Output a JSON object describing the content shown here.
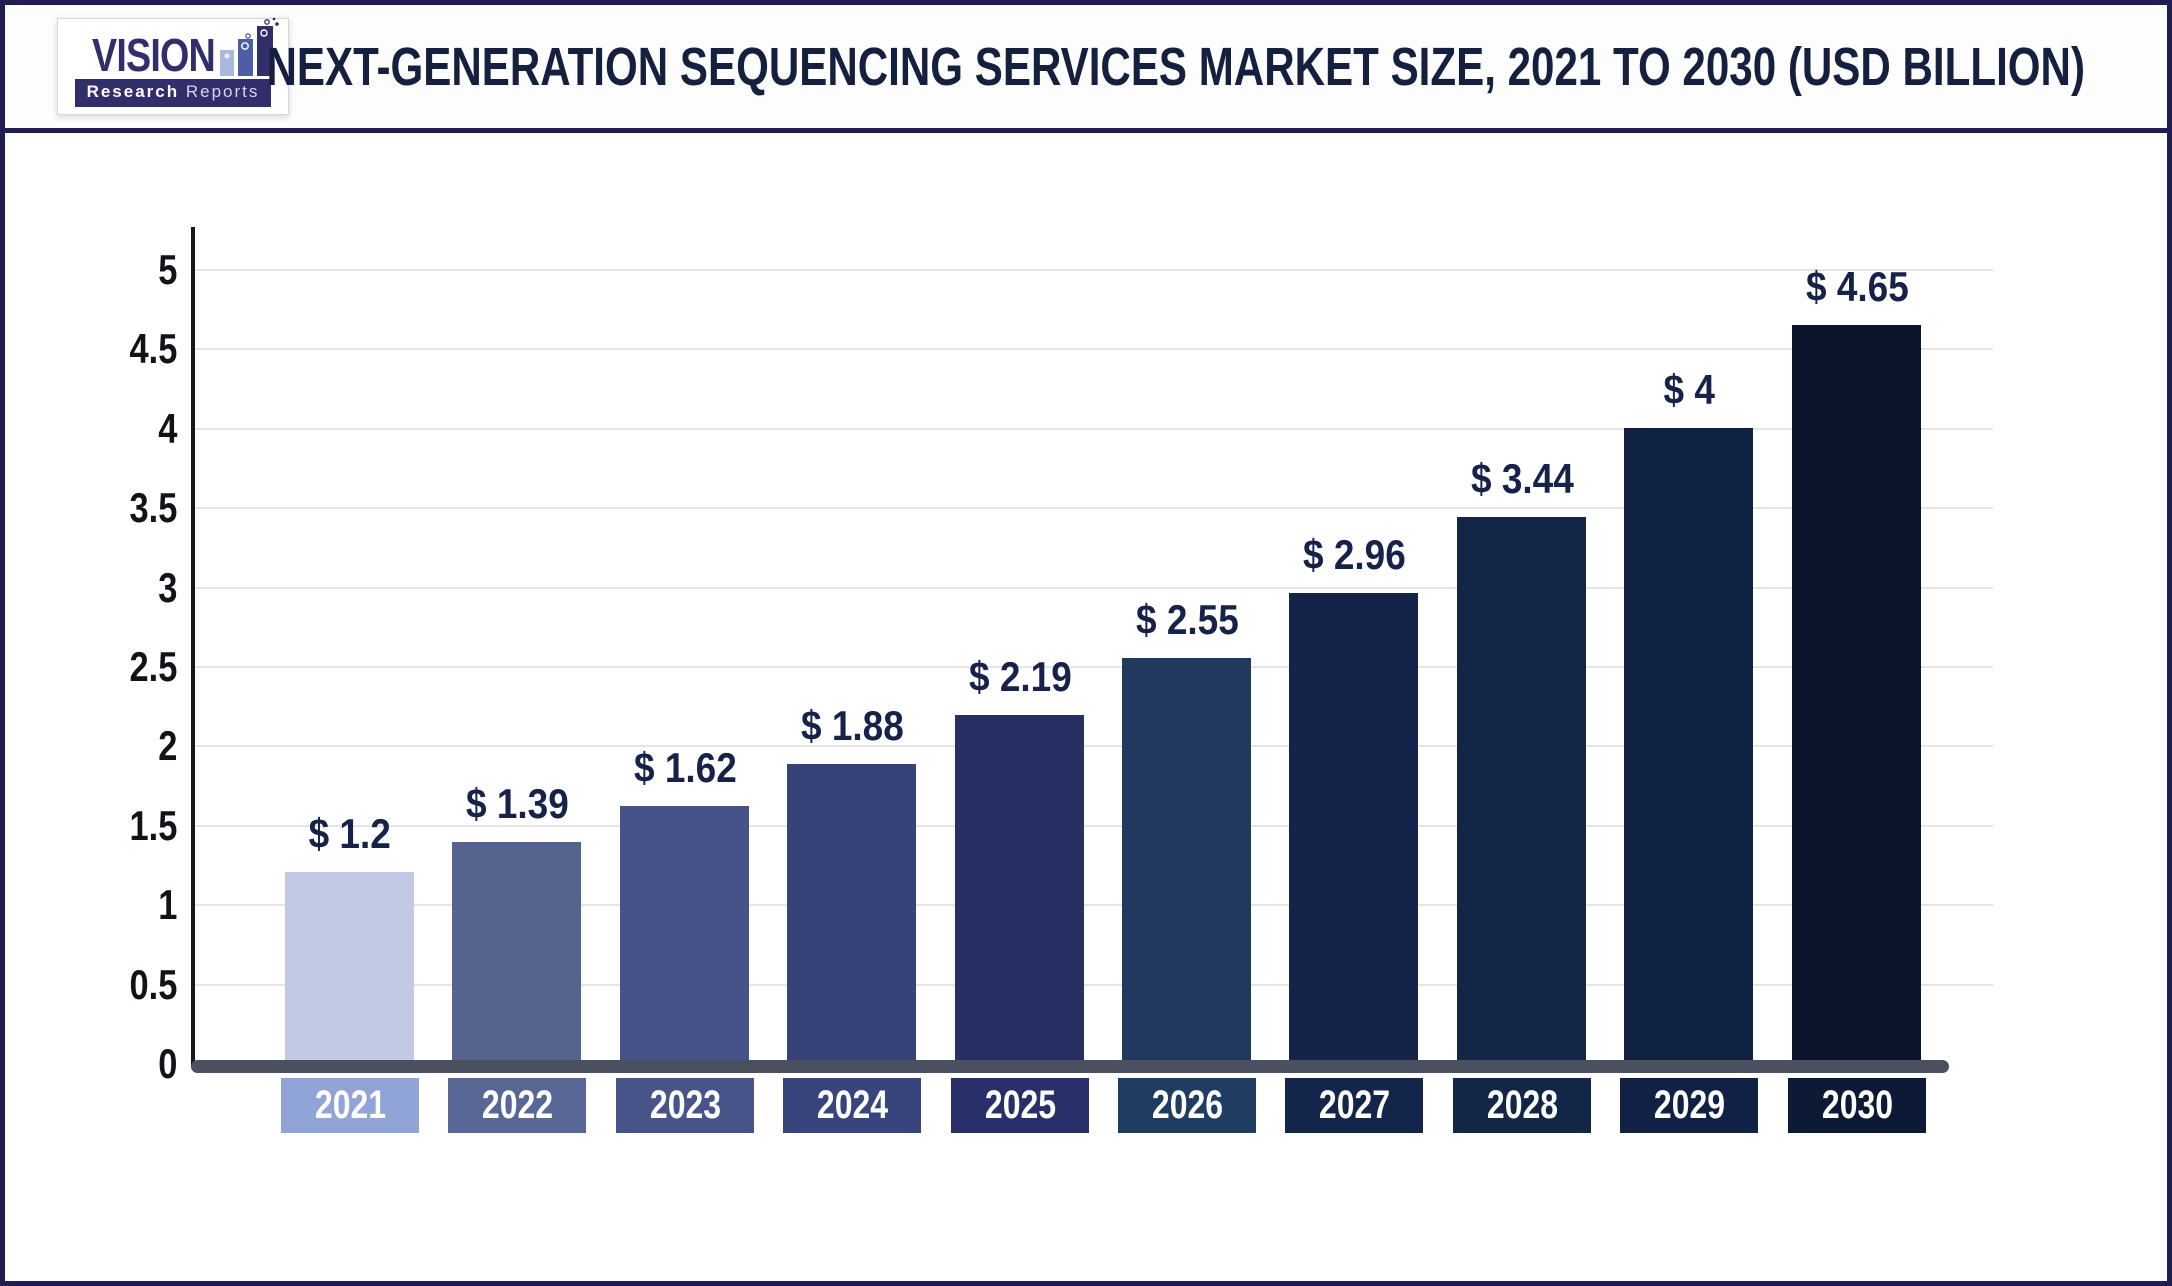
{
  "header": {
    "logo": {
      "brand": "VISION",
      "sub_bold": "Research",
      "sub_light": "Reports",
      "colors": {
        "brand_navy": "#312e6b",
        "icon_bar_light": "#aab7de",
        "icon_bar_mid": "#4d5ea8",
        "icon_bar_dark": "#312e6b"
      }
    },
    "title": "NEXT-GENERATION SEQUENCING SERVICES MARKET SIZE, 2021 TO 2030 (USD BILLION)"
  },
  "chart_data": {
    "type": "bar",
    "title": "NEXT-GENERATION SEQUENCING SERVICES MARKET SIZE, 2021 TO 2030 (USD BILLION)",
    "categories": [
      "2021",
      "2022",
      "2023",
      "2024",
      "2025",
      "2026",
      "2027",
      "2028",
      "2029",
      "2030"
    ],
    "values": [
      1.2,
      1.39,
      1.62,
      1.88,
      2.19,
      2.55,
      2.96,
      3.44,
      4,
      4.65
    ],
    "bar_value_labels": [
      "$ 1.2",
      "$ 1.39",
      "$ 1.62",
      "$ 1.88",
      "$ 2.19",
      "$ 2.55",
      "$ 2.96",
      "$ 3.44",
      "$ 4",
      "$ 4.65"
    ],
    "ylim": [
      0,
      5
    ],
    "yticks": [
      "0",
      "0.5",
      "1",
      "1.5",
      "2",
      "2.5",
      "3",
      "3.5",
      "4",
      "4.5",
      "5"
    ],
    "grid": true,
    "legend_position": "none",
    "bar_colors": [
      "#c1c9e4",
      "#55648f",
      "#45538a",
      "#36437a",
      "#272f63",
      "#21395e",
      "#13234a",
      "#132647",
      "#102242",
      "#0b162c"
    ],
    "category_box_colors": [
      "#91a4d7",
      "#586795",
      "#47548a",
      "#38457c",
      "#293069",
      "#1f3c63",
      "#14254c",
      "#122648",
      "#102145",
      "#0c1a36"
    ],
    "value_label_color": "#16224a",
    "tick_label_color": "#101318",
    "gridline_color": "#e4e4e9",
    "axis_color": "#17171f",
    "baseline_color": "#4b5060"
  }
}
